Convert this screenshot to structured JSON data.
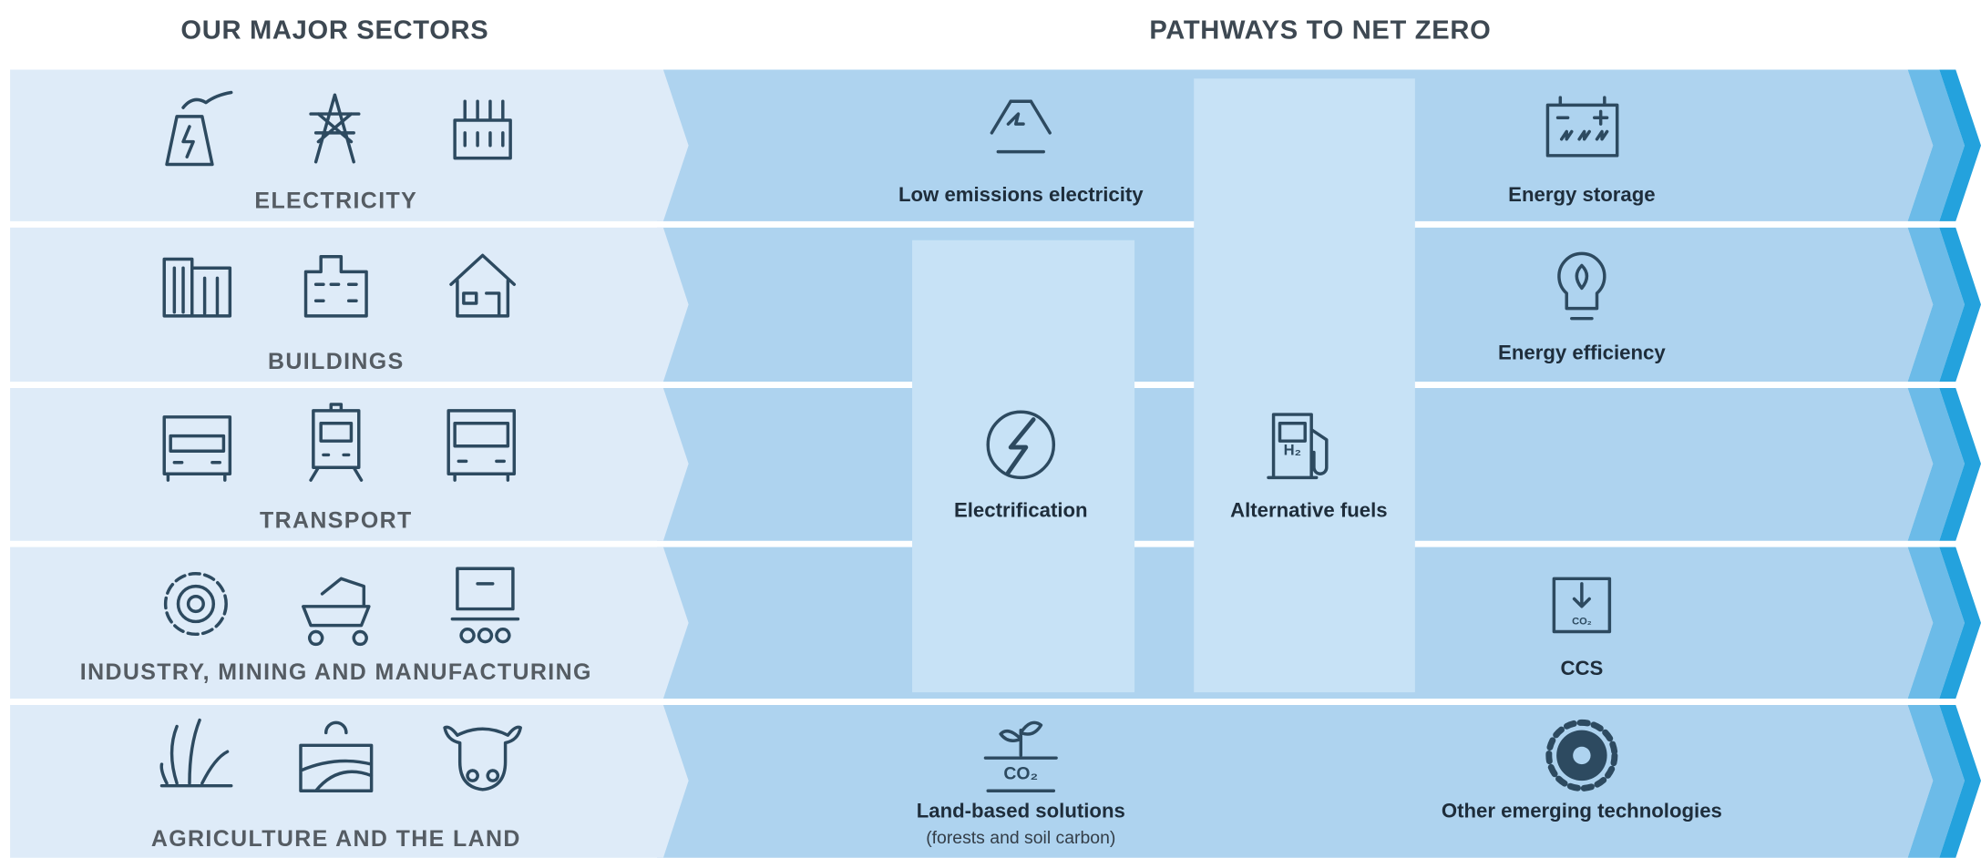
{
  "header": {
    "left_title": "OUR MAJOR SECTORS",
    "right_title": "PATHWAYS TO NET ZERO"
  },
  "sectors": [
    {
      "label": "ELECTRICITY"
    },
    {
      "label": "BUILDINGS"
    },
    {
      "label": "TRANSPORT"
    },
    {
      "label": "INDUSTRY, MINING AND MANUFACTURING"
    },
    {
      "label": "AGRICULTURE AND THE LAND"
    }
  ],
  "pathways": [
    {
      "label": "Low emissions electricity"
    },
    {
      "label": "Energy storage"
    },
    {
      "label": "Energy efficiency"
    },
    {
      "label": "Electrification"
    },
    {
      "label": "Alternative fuels"
    },
    {
      "label": "CCS"
    },
    {
      "label": "Land-based solutions",
      "sublabel": "(forests and soil carbon)"
    },
    {
      "label": "Other emerging technologies"
    }
  ]
}
